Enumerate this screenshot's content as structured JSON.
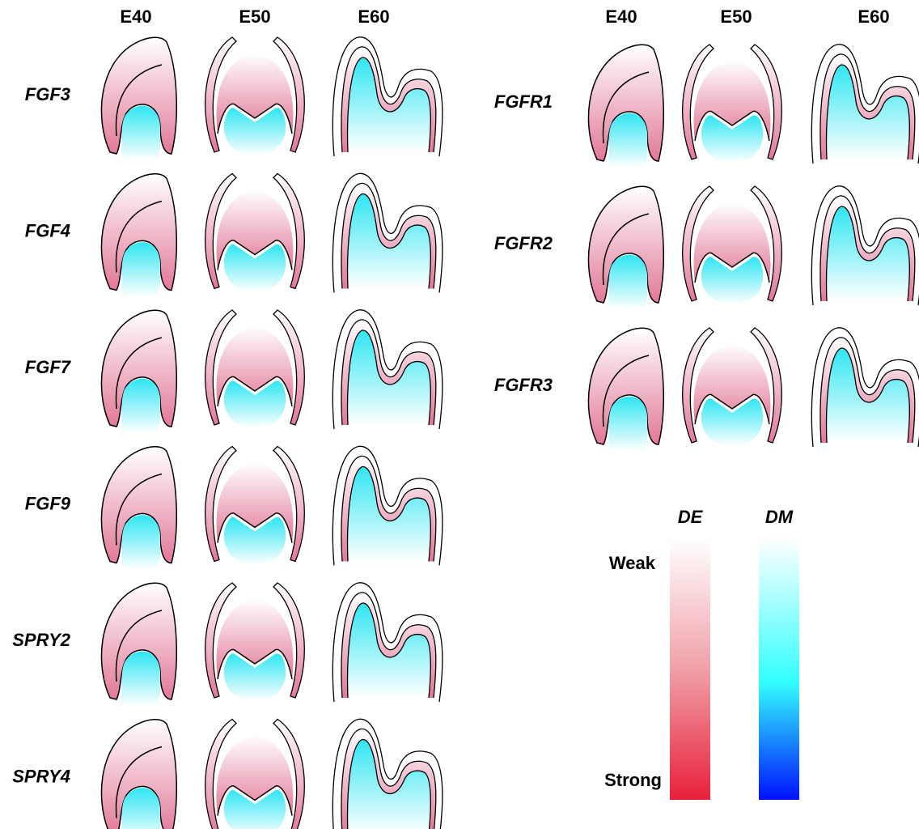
{
  "left": {
    "stages": [
      "E40",
      "E50",
      "E60"
    ],
    "genes": [
      "FGF3",
      "FGF4",
      "FGF7",
      "FGF9",
      "SPRY2",
      "SPRY4"
    ]
  },
  "right": {
    "stages": [
      "E40",
      "E50",
      "E60"
    ],
    "genes": [
      "FGFR1",
      "FGFR2",
      "FGFR3"
    ]
  },
  "legend": {
    "de": "DE",
    "dm": "DM",
    "weak": "Weak",
    "strong": "Strong"
  }
}
